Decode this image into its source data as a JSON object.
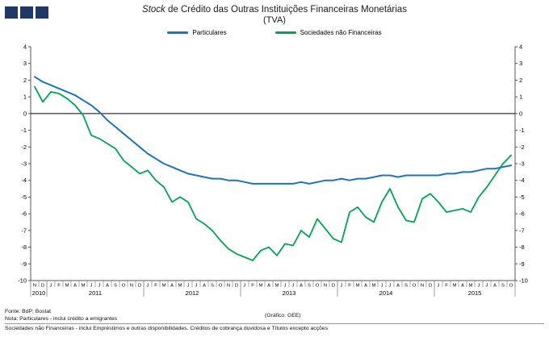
{
  "logo": {
    "color": "#1f3864",
    "squares": 3
  },
  "title": {
    "italic": "Stock",
    "rest": " de Crédito das Outras Instituições Financeiras Monetárias",
    "line2": "(TVA)"
  },
  "legend": [
    {
      "label": "Particulares",
      "color": "#1b75bc"
    },
    {
      "label": "Sociedades não Financeiras",
      "color": "#00a551"
    }
  ],
  "footer": {
    "line1": "Fonte: BdP; Bostat",
    "line2": "Nota: Particulares - inclui crédito a emigrantes",
    "line3": "Sociedades não Financeiras - inclui Empréstimos e outras disponibilidades. Créditos de cobrança duvidosa e Títulos excepto acções",
    "grafico": "(Gráfico: GEE)"
  },
  "chart_data": {
    "type": "line",
    "title": "Stock de Crédito das Outras Instituições Financeiras Monetárias (TVA)",
    "ylim": [
      -10,
      4
    ],
    "ytick_step": 1,
    "grid": false,
    "legend_position": "top",
    "months": [
      "N",
      "D",
      "J",
      "F",
      "M",
      "A",
      "M",
      "J",
      "J",
      "A",
      "S",
      "O",
      "N",
      "D",
      "J",
      "F",
      "M",
      "A",
      "M",
      "J",
      "J",
      "A",
      "S",
      "O",
      "N",
      "D",
      "J",
      "F",
      "M",
      "A",
      "M",
      "J",
      "J",
      "A",
      "S",
      "O",
      "N",
      "D",
      "J",
      "F",
      "M",
      "A",
      "M",
      "J",
      "J",
      "A",
      "S",
      "O",
      "N",
      "D",
      "J",
      "F",
      "M",
      "A",
      "M",
      "J",
      "J",
      "A",
      "S",
      "O"
    ],
    "years": [
      {
        "label": "2010",
        "start": 0,
        "count": 2
      },
      {
        "label": "2011",
        "start": 2,
        "count": 12
      },
      {
        "label": "2012",
        "start": 14,
        "count": 12
      },
      {
        "label": "2013",
        "start": 26,
        "count": 12
      },
      {
        "label": "2014",
        "start": 38,
        "count": 12
      },
      {
        "label": "2015",
        "start": 50,
        "count": 10
      }
    ],
    "series": [
      {
        "name": "Particulares",
        "color": "#1b75bc",
        "values": [
          2.2,
          1.9,
          1.7,
          1.5,
          1.3,
          1.1,
          0.8,
          0.5,
          0.1,
          -0.4,
          -0.8,
          -1.2,
          -1.6,
          -2.0,
          -2.4,
          -2.7,
          -3.0,
          -3.2,
          -3.4,
          -3.6,
          -3.7,
          -3.8,
          -3.9,
          -3.9,
          -4.0,
          -4.0,
          -4.1,
          -4.2,
          -4.2,
          -4.2,
          -4.2,
          -4.2,
          -4.2,
          -4.1,
          -4.2,
          -4.1,
          -4.0,
          -4.0,
          -3.9,
          -4.0,
          -3.9,
          -3.9,
          -3.8,
          -3.7,
          -3.7,
          -3.8,
          -3.7,
          -3.7,
          -3.7,
          -3.7,
          -3.7,
          -3.6,
          -3.6,
          -3.5,
          -3.5,
          -3.4,
          -3.3,
          -3.3,
          -3.2,
          -3.1
        ]
      },
      {
        "name": "Sociedades não Financeiras",
        "color": "#00a551",
        "values": [
          1.6,
          0.7,
          1.3,
          1.2,
          0.9,
          0.5,
          -0.1,
          -1.3,
          -1.5,
          -1.8,
          -2.1,
          -2.8,
          -3.2,
          -3.6,
          -3.4,
          -4.0,
          -4.4,
          -5.3,
          -5.0,
          -5.3,
          -6.3,
          -6.6,
          -7.0,
          -7.6,
          -8.1,
          -8.4,
          -8.6,
          -8.8,
          -8.2,
          -8.0,
          -8.5,
          -7.8,
          -7.9,
          -7.0,
          -7.4,
          -6.3,
          -6.9,
          -7.5,
          -7.7,
          -5.9,
          -5.6,
          -6.2,
          -6.5,
          -5.3,
          -4.5,
          -5.6,
          -6.4,
          -6.5,
          -5.1,
          -4.8,
          -5.3,
          -5.9,
          -5.8,
          -5.7,
          -5.9,
          -5.0,
          -4.4,
          -3.7,
          -3.0,
          -2.5
        ]
      }
    ]
  }
}
